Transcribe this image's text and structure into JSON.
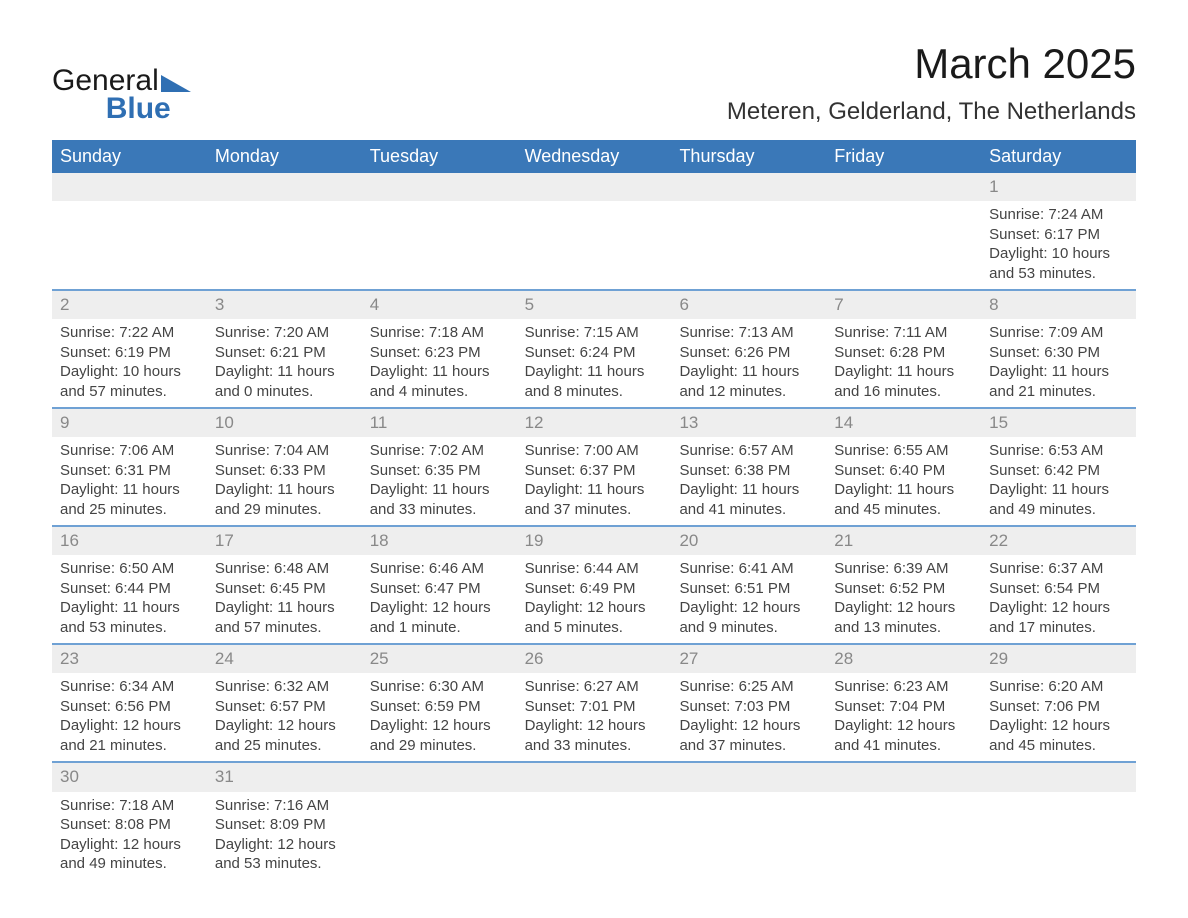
{
  "brand": {
    "text1": "General",
    "text2": "Blue"
  },
  "header": {
    "month_title": "March 2025",
    "location": "Meteren, Gelderland, The Netherlands"
  },
  "theme": {
    "header_bg": "#3a78b8",
    "header_text": "#ffffff",
    "band_bg": "#eeeeee",
    "band_text": "#888888",
    "body_text": "#444444",
    "row_divider": "#6fa1d4",
    "page_bg": "#ffffff"
  },
  "day_headers": [
    "Sunday",
    "Monday",
    "Tuesday",
    "Wednesday",
    "Thursday",
    "Friday",
    "Saturday"
  ],
  "weeks": [
    [
      {
        "empty": true
      },
      {
        "empty": true
      },
      {
        "empty": true
      },
      {
        "empty": true
      },
      {
        "empty": true
      },
      {
        "empty": true
      },
      {
        "num": "1",
        "sunrise": "Sunrise: 7:24 AM",
        "sunset": "Sunset: 6:17 PM",
        "daylight": "Daylight: 10 hours and 53 minutes."
      }
    ],
    [
      {
        "num": "2",
        "sunrise": "Sunrise: 7:22 AM",
        "sunset": "Sunset: 6:19 PM",
        "daylight": "Daylight: 10 hours and 57 minutes."
      },
      {
        "num": "3",
        "sunrise": "Sunrise: 7:20 AM",
        "sunset": "Sunset: 6:21 PM",
        "daylight": "Daylight: 11 hours and 0 minutes."
      },
      {
        "num": "4",
        "sunrise": "Sunrise: 7:18 AM",
        "sunset": "Sunset: 6:23 PM",
        "daylight": "Daylight: 11 hours and 4 minutes."
      },
      {
        "num": "5",
        "sunrise": "Sunrise: 7:15 AM",
        "sunset": "Sunset: 6:24 PM",
        "daylight": "Daylight: 11 hours and 8 minutes."
      },
      {
        "num": "6",
        "sunrise": "Sunrise: 7:13 AM",
        "sunset": "Sunset: 6:26 PM",
        "daylight": "Daylight: 11 hours and 12 minutes."
      },
      {
        "num": "7",
        "sunrise": "Sunrise: 7:11 AM",
        "sunset": "Sunset: 6:28 PM",
        "daylight": "Daylight: 11 hours and 16 minutes."
      },
      {
        "num": "8",
        "sunrise": "Sunrise: 7:09 AM",
        "sunset": "Sunset: 6:30 PM",
        "daylight": "Daylight: 11 hours and 21 minutes."
      }
    ],
    [
      {
        "num": "9",
        "sunrise": "Sunrise: 7:06 AM",
        "sunset": "Sunset: 6:31 PM",
        "daylight": "Daylight: 11 hours and 25 minutes."
      },
      {
        "num": "10",
        "sunrise": "Sunrise: 7:04 AM",
        "sunset": "Sunset: 6:33 PM",
        "daylight": "Daylight: 11 hours and 29 minutes."
      },
      {
        "num": "11",
        "sunrise": "Sunrise: 7:02 AM",
        "sunset": "Sunset: 6:35 PM",
        "daylight": "Daylight: 11 hours and 33 minutes."
      },
      {
        "num": "12",
        "sunrise": "Sunrise: 7:00 AM",
        "sunset": "Sunset: 6:37 PM",
        "daylight": "Daylight: 11 hours and 37 minutes."
      },
      {
        "num": "13",
        "sunrise": "Sunrise: 6:57 AM",
        "sunset": "Sunset: 6:38 PM",
        "daylight": "Daylight: 11 hours and 41 minutes."
      },
      {
        "num": "14",
        "sunrise": "Sunrise: 6:55 AM",
        "sunset": "Sunset: 6:40 PM",
        "daylight": "Daylight: 11 hours and 45 minutes."
      },
      {
        "num": "15",
        "sunrise": "Sunrise: 6:53 AM",
        "sunset": "Sunset: 6:42 PM",
        "daylight": "Daylight: 11 hours and 49 minutes."
      }
    ],
    [
      {
        "num": "16",
        "sunrise": "Sunrise: 6:50 AM",
        "sunset": "Sunset: 6:44 PM",
        "daylight": "Daylight: 11 hours and 53 minutes."
      },
      {
        "num": "17",
        "sunrise": "Sunrise: 6:48 AM",
        "sunset": "Sunset: 6:45 PM",
        "daylight": "Daylight: 11 hours and 57 minutes."
      },
      {
        "num": "18",
        "sunrise": "Sunrise: 6:46 AM",
        "sunset": "Sunset: 6:47 PM",
        "daylight": "Daylight: 12 hours and 1 minute."
      },
      {
        "num": "19",
        "sunrise": "Sunrise: 6:44 AM",
        "sunset": "Sunset: 6:49 PM",
        "daylight": "Daylight: 12 hours and 5 minutes."
      },
      {
        "num": "20",
        "sunrise": "Sunrise: 6:41 AM",
        "sunset": "Sunset: 6:51 PM",
        "daylight": "Daylight: 12 hours and 9 minutes."
      },
      {
        "num": "21",
        "sunrise": "Sunrise: 6:39 AM",
        "sunset": "Sunset: 6:52 PM",
        "daylight": "Daylight: 12 hours and 13 minutes."
      },
      {
        "num": "22",
        "sunrise": "Sunrise: 6:37 AM",
        "sunset": "Sunset: 6:54 PM",
        "daylight": "Daylight: 12 hours and 17 minutes."
      }
    ],
    [
      {
        "num": "23",
        "sunrise": "Sunrise: 6:34 AM",
        "sunset": "Sunset: 6:56 PM",
        "daylight": "Daylight: 12 hours and 21 minutes."
      },
      {
        "num": "24",
        "sunrise": "Sunrise: 6:32 AM",
        "sunset": "Sunset: 6:57 PM",
        "daylight": "Daylight: 12 hours and 25 minutes."
      },
      {
        "num": "25",
        "sunrise": "Sunrise: 6:30 AM",
        "sunset": "Sunset: 6:59 PM",
        "daylight": "Daylight: 12 hours and 29 minutes."
      },
      {
        "num": "26",
        "sunrise": "Sunrise: 6:27 AM",
        "sunset": "Sunset: 7:01 PM",
        "daylight": "Daylight: 12 hours and 33 minutes."
      },
      {
        "num": "27",
        "sunrise": "Sunrise: 6:25 AM",
        "sunset": "Sunset: 7:03 PM",
        "daylight": "Daylight: 12 hours and 37 minutes."
      },
      {
        "num": "28",
        "sunrise": "Sunrise: 6:23 AM",
        "sunset": "Sunset: 7:04 PM",
        "daylight": "Daylight: 12 hours and 41 minutes."
      },
      {
        "num": "29",
        "sunrise": "Sunrise: 6:20 AM",
        "sunset": "Sunset: 7:06 PM",
        "daylight": "Daylight: 12 hours and 45 minutes."
      }
    ],
    [
      {
        "num": "30",
        "sunrise": "Sunrise: 7:18 AM",
        "sunset": "Sunset: 8:08 PM",
        "daylight": "Daylight: 12 hours and 49 minutes."
      },
      {
        "num": "31",
        "sunrise": "Sunrise: 7:16 AM",
        "sunset": "Sunset: 8:09 PM",
        "daylight": "Daylight: 12 hours and 53 minutes."
      },
      {
        "empty": true
      },
      {
        "empty": true
      },
      {
        "empty": true
      },
      {
        "empty": true
      },
      {
        "empty": true
      }
    ]
  ]
}
